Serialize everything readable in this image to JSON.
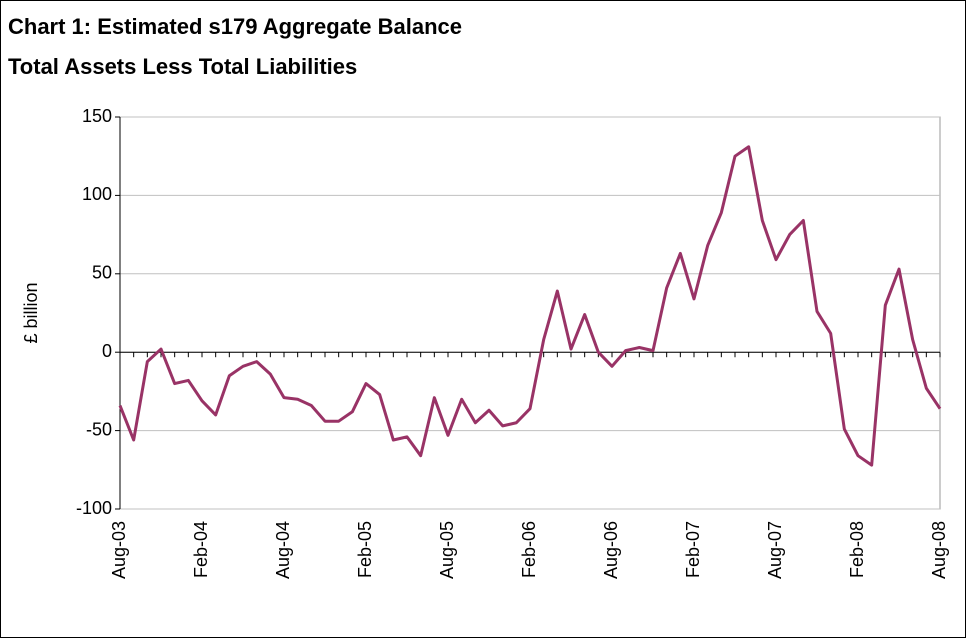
{
  "chart_data": {
    "type": "line",
    "title": "Chart 1: Estimated s179 Aggregate Balance",
    "subtitle": "Total Assets Less Total Liabilities",
    "y_label": "£ billion",
    "categories": [
      "Aug-03",
      null,
      null,
      null,
      null,
      null,
      "Feb-04",
      null,
      null,
      null,
      null,
      null,
      "Aug-04",
      null,
      null,
      null,
      null,
      null,
      "Feb-05",
      null,
      null,
      null,
      null,
      null,
      "Aug-05",
      null,
      null,
      null,
      null,
      null,
      "Feb-06",
      null,
      null,
      null,
      null,
      null,
      "Aug-06",
      null,
      null,
      null,
      null,
      null,
      "Feb-07",
      null,
      null,
      null,
      null,
      null,
      "Aug-07",
      null,
      null,
      null,
      null,
      null,
      "Feb-08",
      null,
      null,
      null,
      null,
      null,
      "Aug-08"
    ],
    "series": [
      {
        "name": "s179 aggregate balance",
        "color": "#993366",
        "values": [
          -34,
          -56,
          -6,
          2,
          -20,
          -18,
          -31,
          -40,
          -15,
          -9,
          -6,
          -14,
          -29,
          -30,
          -34,
          -44,
          -44,
          -38,
          -20,
          -27,
          -56,
          -54,
          -66,
          -29,
          -53,
          -30,
          -45,
          -37,
          -47,
          -45,
          -36,
          8,
          39,
          2,
          24,
          0,
          -9,
          1,
          3,
          1,
          41,
          63,
          34,
          68,
          89,
          125,
          131,
          84,
          59,
          75,
          84,
          26,
          12,
          -49,
          -66,
          -72,
          30,
          53,
          8,
          -23,
          -36
        ]
      }
    ],
    "ylim": [
      -100,
      150
    ],
    "yticks": [
      -100,
      -50,
      0,
      50,
      100,
      150
    ],
    "grid": true
  }
}
